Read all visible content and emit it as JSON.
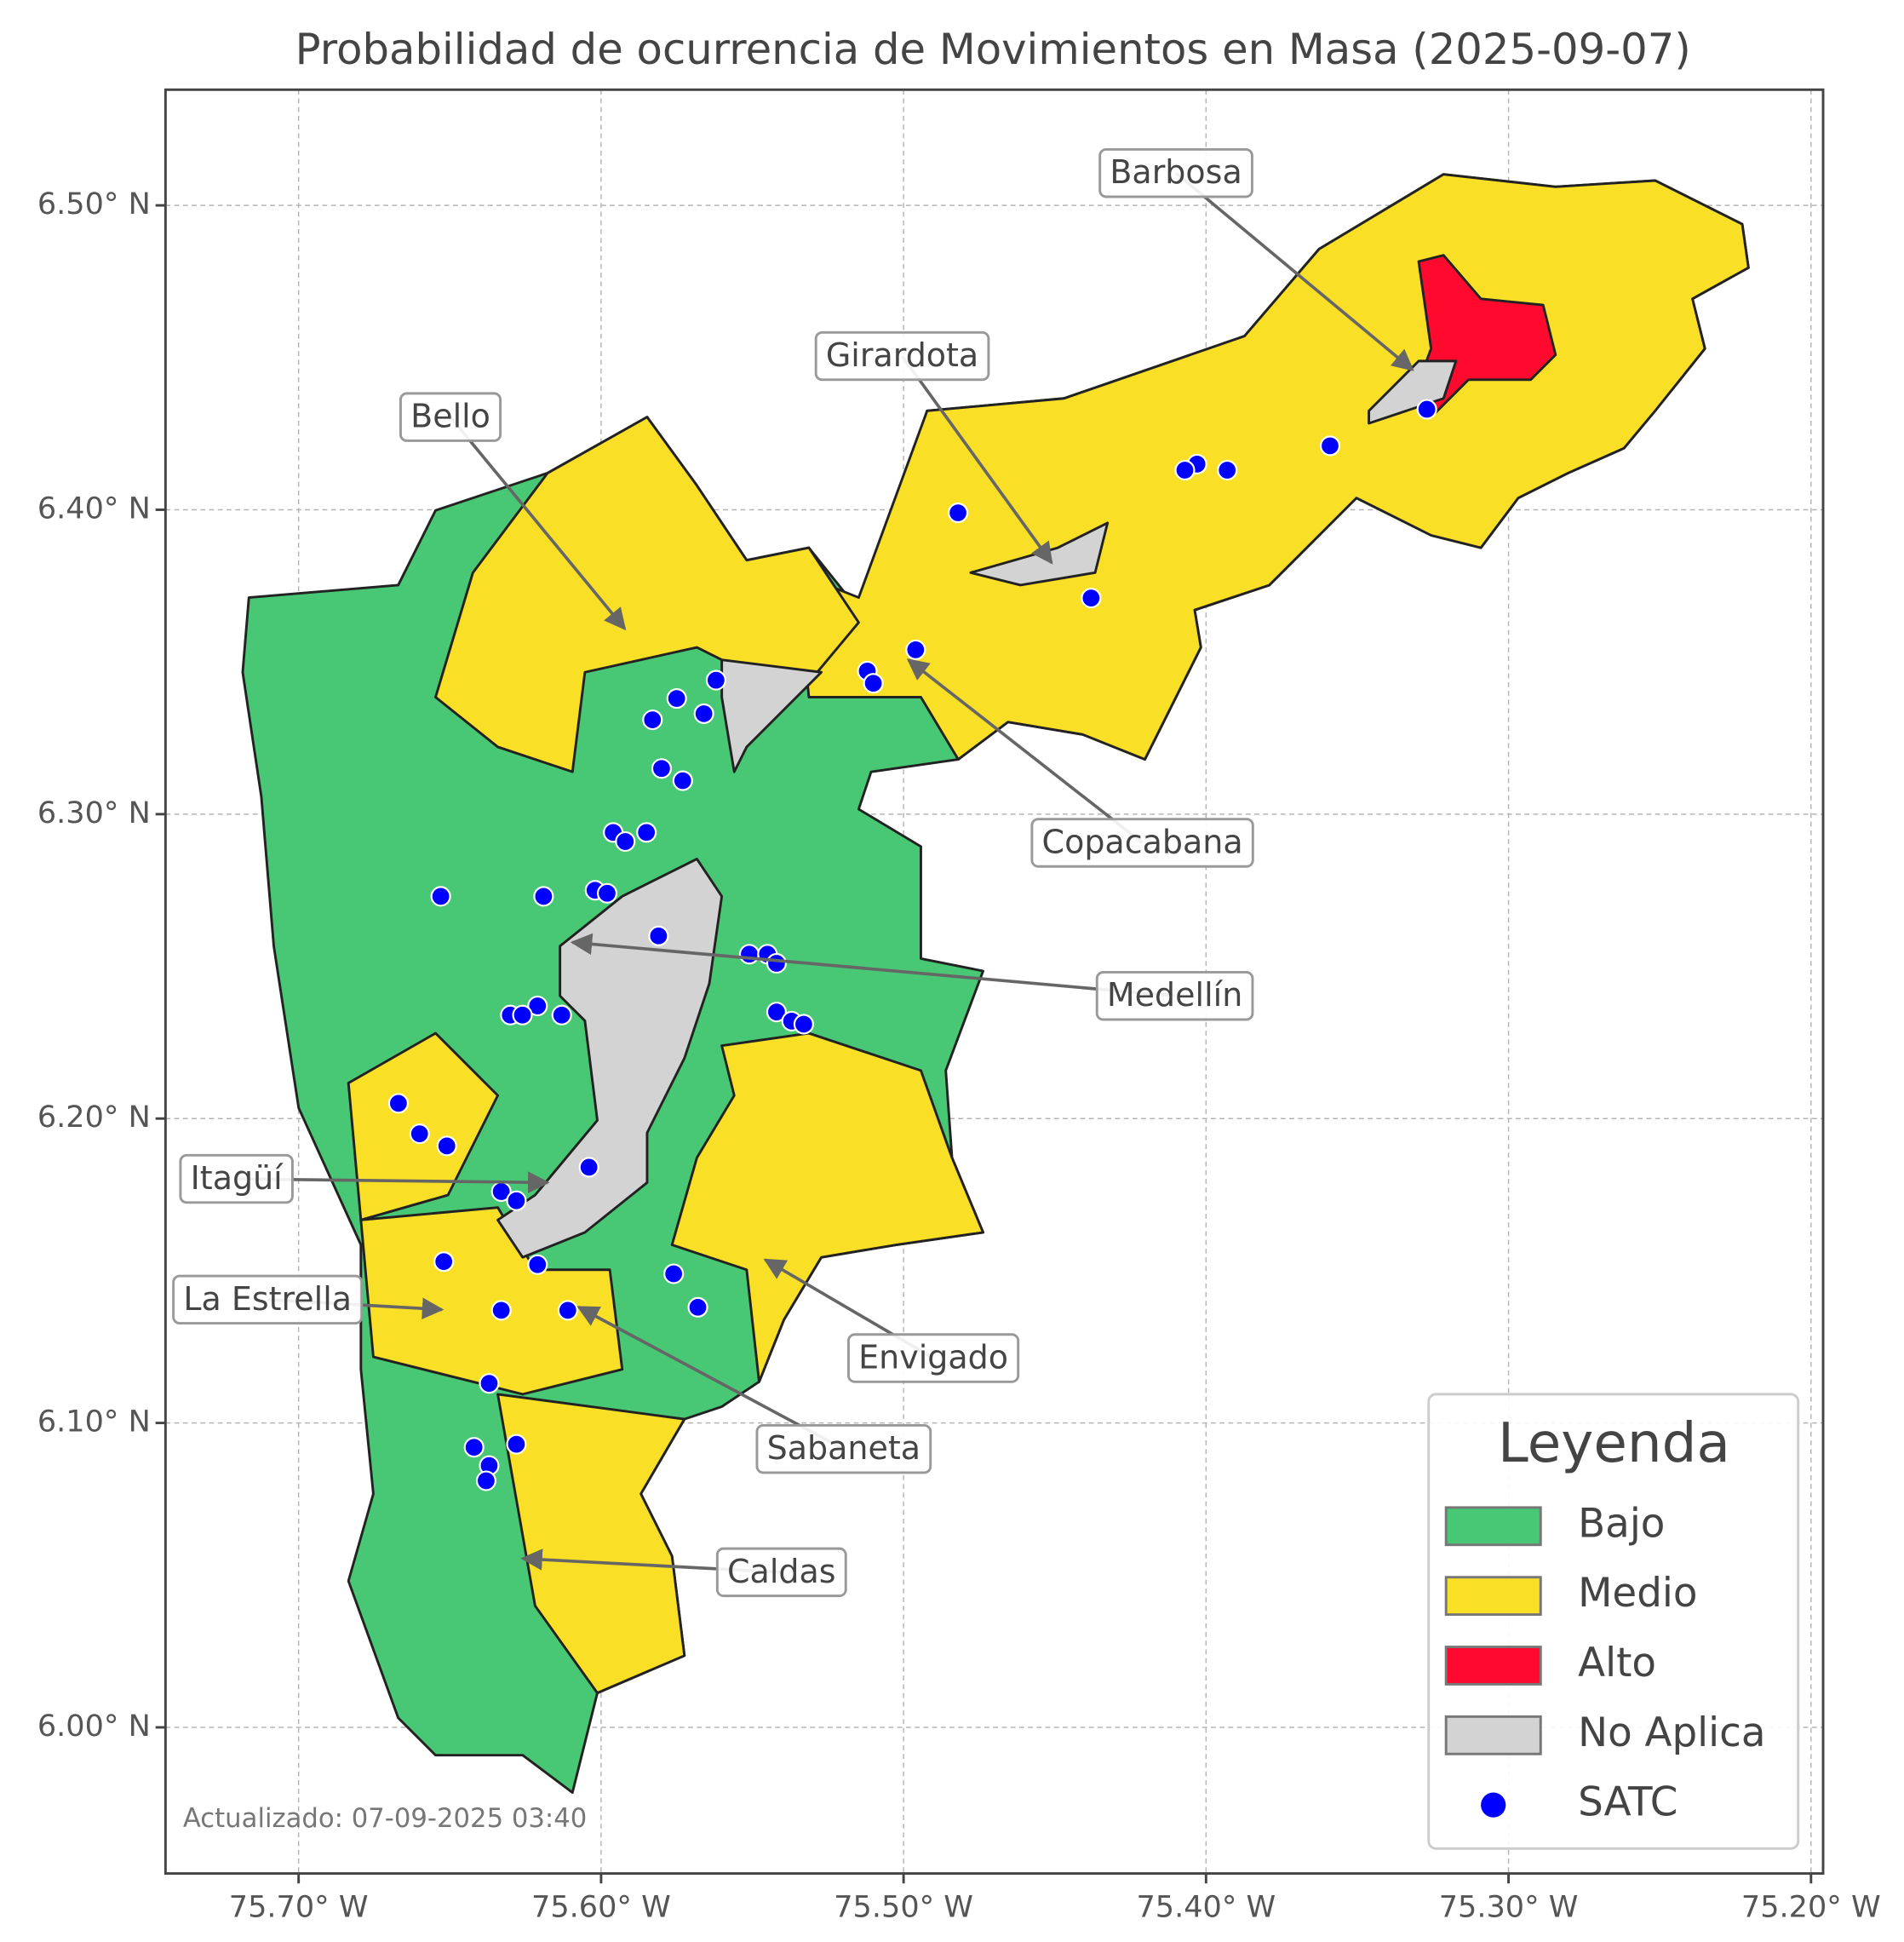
{
  "chart_data": {
    "type": "map",
    "title": "Probabilidad de ocurrencia de Movimientos en Masa (2025-09-07)",
    "xlim": [
      -75.744,
      -75.196
    ],
    "ylim": [
      5.952,
      6.538
    ],
    "xticks": [
      {
        "value": -75.7,
        "label": "75.70° W"
      },
      {
        "value": -75.6,
        "label": "75.60° W"
      },
      {
        "value": -75.5,
        "label": "75.50° W"
      },
      {
        "value": -75.4,
        "label": "75.40° W"
      },
      {
        "value": -75.3,
        "label": "75.30° W"
      },
      {
        "value": -75.2,
        "label": "75.20° W"
      }
    ],
    "yticks": [
      {
        "value": 6.0,
        "label": "6.00° N"
      },
      {
        "value": 6.1,
        "label": "6.10° N"
      },
      {
        "value": 6.2,
        "label": "6.20° N"
      },
      {
        "value": 6.3,
        "label": "6.30° N"
      },
      {
        "value": 6.4,
        "label": "6.40° N"
      },
      {
        "value": 6.5,
        "label": "6.50° N"
      }
    ],
    "grid": true,
    "legend_title": "Leyenda",
    "legend_position": "lower right",
    "regions": [
      {
        "name": "Bajo",
        "color": "#48c774"
      },
      {
        "name": "Medio",
        "color": "#fadf27"
      },
      {
        "name": "Alto",
        "color": "#ff0a2e"
      },
      {
        "name": "No Aplica",
        "color": "#d3d3d3"
      }
    ],
    "series": [
      {
        "name": "SATC",
        "color": "#0000ff",
        "x": [
          -75.327,
          -75.359,
          -75.393,
          -75.403,
          -75.407,
          -75.482,
          -75.438,
          -75.496,
          -75.512,
          -75.51,
          -75.562,
          -75.575,
          -75.583,
          -75.566,
          -75.58,
          -75.573,
          -75.596,
          -75.585,
          -75.592,
          -75.653,
          -75.619,
          -75.602,
          -75.598,
          -75.581,
          -75.551,
          -75.545,
          -75.542,
          -75.542,
          -75.537,
          -75.533,
          -75.621,
          -75.613,
          -75.63,
          -75.626,
          -75.667,
          -75.66,
          -75.651,
          -75.604,
          -75.633,
          -75.628,
          -75.652,
          -75.621,
          -75.576,
          -75.568,
          -75.633,
          -75.611,
          -75.637,
          -75.642,
          -75.628,
          -75.637,
          -75.638
        ],
        "y": [
          6.433,
          6.421,
          6.413,
          6.415,
          6.413,
          6.399,
          6.371,
          6.354,
          6.347,
          6.343,
          6.344,
          6.338,
          6.331,
          6.333,
          6.315,
          6.311,
          6.294,
          6.294,
          6.291,
          6.273,
          6.273,
          6.275,
          6.274,
          6.26,
          6.254,
          6.254,
          6.251,
          6.235,
          6.232,
          6.231,
          6.237,
          6.234,
          6.234,
          6.234,
          6.205,
          6.195,
          6.191,
          6.184,
          6.176,
          6.173,
          6.153,
          6.152,
          6.149,
          6.138,
          6.137,
          6.137,
          6.113,
          6.092,
          6.093,
          6.086,
          6.081
        ]
      }
    ],
    "annotations": [
      "Barbosa",
      "Girardota",
      "Bello",
      "Copacabana",
      "Medellín",
      "Itagüí",
      "La Estrella",
      "Envigado",
      "Sabaneta",
      "Caldas"
    ],
    "footnote": "Actualizado: 07-09-2025 03:40"
  }
}
